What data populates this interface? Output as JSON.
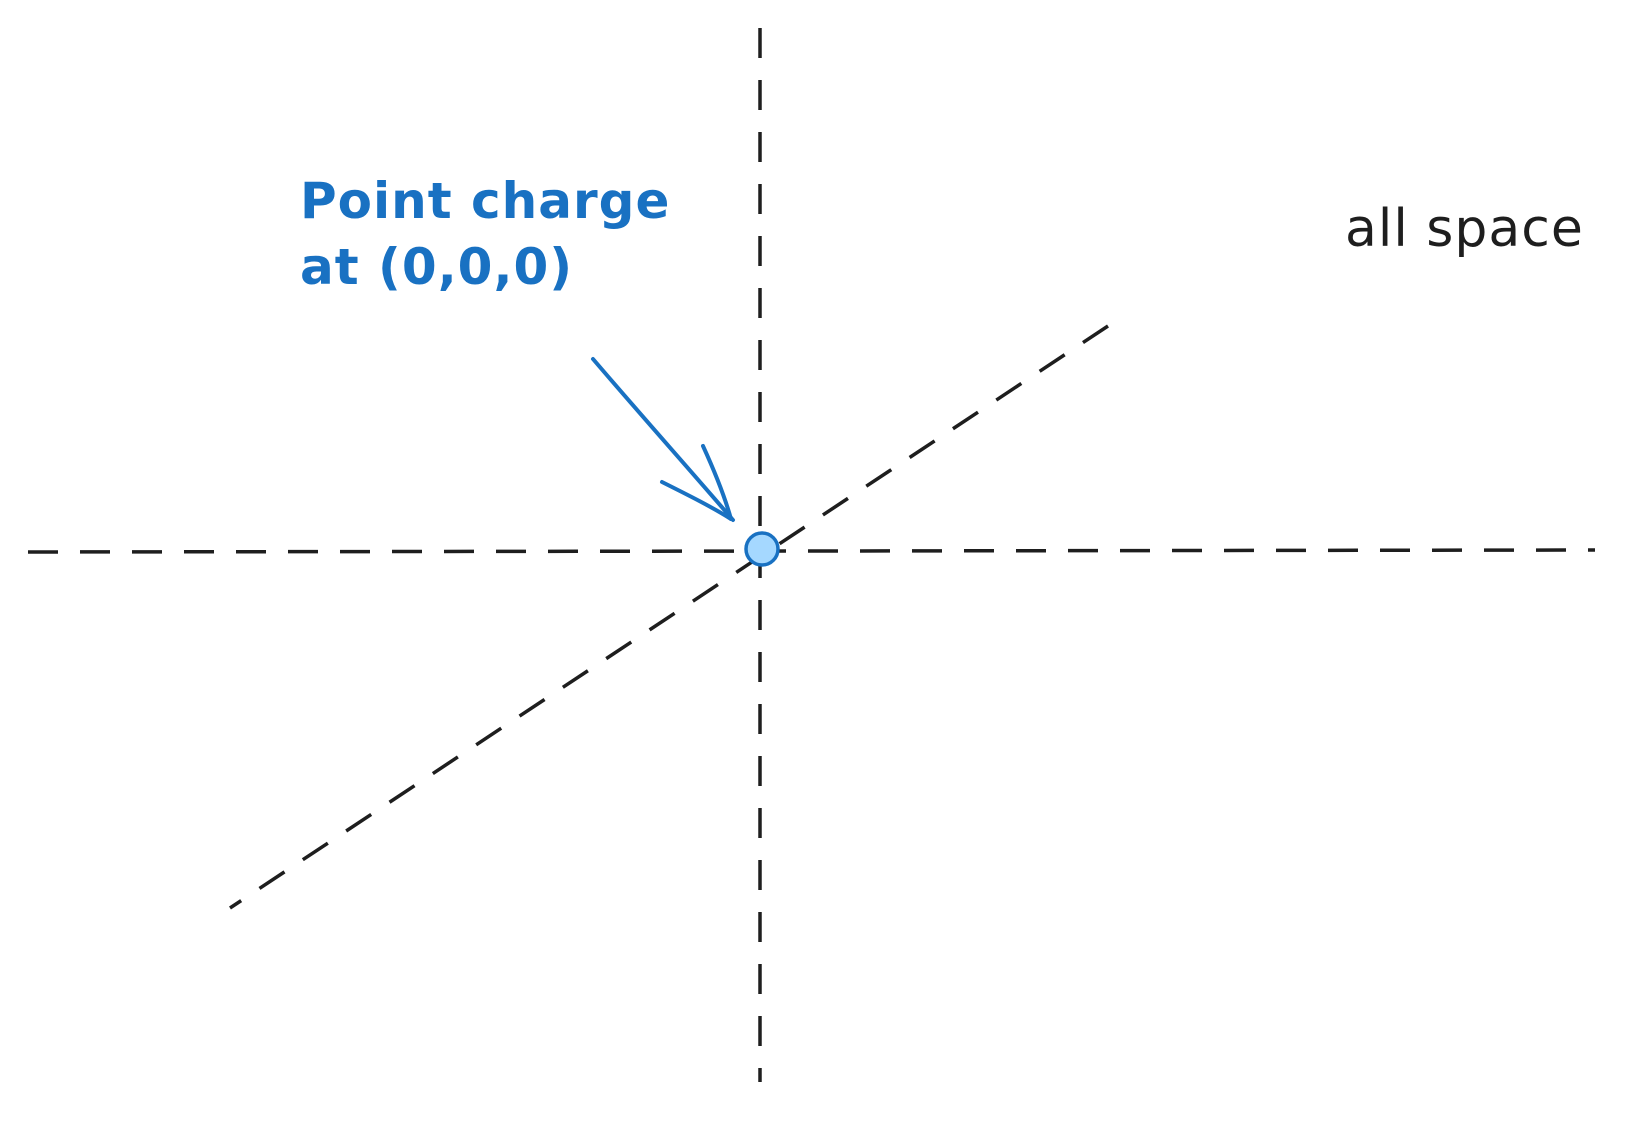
{
  "annotations": {
    "point_charge": "Point charge\nat (0,0,0)",
    "region": "all space"
  },
  "colors": {
    "axis": "#1e1e1e",
    "annotation": "#1971c2",
    "charge_fill": "#a5d8ff",
    "charge_stroke": "#1971c2",
    "region_text": "#1e1e1e"
  },
  "icons": {
    "charge": "point-charge-dot",
    "arrow": "arrow-to-charge"
  }
}
